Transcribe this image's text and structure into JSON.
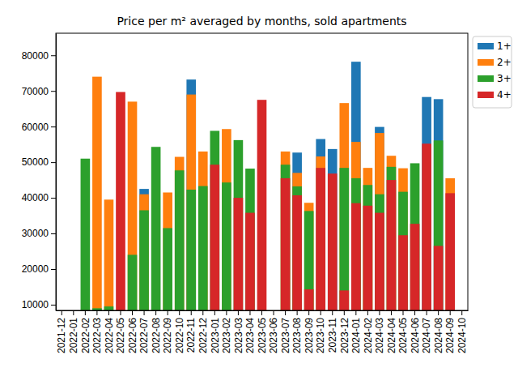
{
  "chart_data": {
    "type": "bar",
    "title": "Price per m² averaged by months, sold apartments",
    "categories": [
      "2021-12",
      "2022-01",
      "2022-02",
      "2022-03",
      "2022-04",
      "2022-05",
      "2022-06",
      "2022-07",
      "2022-08",
      "2022-09",
      "2022-10",
      "2022-11",
      "2022-12",
      "2023-01",
      "2023-02",
      "2023-03",
      "2023-04",
      "2023-05",
      "2023-06",
      "2023-07",
      "2023-08",
      "2023-09",
      "2023-10",
      "2023-11",
      "2023-12",
      "2024-01",
      "2024-02",
      "2024-03",
      "2024-04",
      "2024-05",
      "2024-06",
      "2024-07",
      "2024-08",
      "2024-09",
      "2024-10"
    ],
    "series": [
      {
        "name": "1+",
        "color": "#1f77b4",
        "values": [
          null,
          null,
          null,
          null,
          null,
          null,
          null,
          42500,
          null,
          null,
          null,
          73200,
          null,
          null,
          null,
          null,
          null,
          null,
          null,
          null,
          52700,
          null,
          56500,
          53700,
          null,
          78200,
          null,
          59900,
          null,
          null,
          null,
          68300,
          67700,
          null,
          null
        ]
      },
      {
        "name": "2+",
        "color": "#ff7f0e",
        "values": [
          null,
          null,
          null,
          74000,
          39500,
          null,
          67000,
          41000,
          null,
          41500,
          51500,
          69000,
          53000,
          null,
          59300,
          null,
          null,
          null,
          null,
          53000,
          47000,
          38600,
          51600,
          null,
          66600,
          55700,
          48400,
          58200,
          51800,
          48300,
          null,
          null,
          null,
          45500,
          null
        ]
      },
      {
        "name": "3+",
        "color": "#2ca02c",
        "values": [
          null,
          null,
          51000,
          9000,
          9500,
          null,
          24000,
          36500,
          54300,
          31500,
          47700,
          42300,
          43300,
          58800,
          44300,
          56200,
          48200,
          null,
          null,
          49300,
          43200,
          36300,
          null,
          null,
          48400,
          45500,
          43600,
          41000,
          48700,
          41700,
          49700,
          null,
          56100,
          null,
          null
        ]
      },
      {
        "name": "4+",
        "color": "#d62728",
        "values": [
          null,
          null,
          null,
          null,
          null,
          69700,
          null,
          null,
          null,
          null,
          null,
          null,
          null,
          49300,
          null,
          40000,
          35800,
          67500,
          null,
          45500,
          40700,
          14300,
          48400,
          46800,
          14000,
          38500,
          37800,
          35800,
          45000,
          29500,
          32700,
          55200,
          26500,
          41300,
          null
        ]
      }
    ],
    "ylim": [
      8400,
      86200
    ],
    "yticks": [
      10000,
      20000,
      30000,
      40000,
      50000,
      60000,
      70000,
      80000
    ],
    "grid": false,
    "stacked": false,
    "legend": "upper right"
  }
}
